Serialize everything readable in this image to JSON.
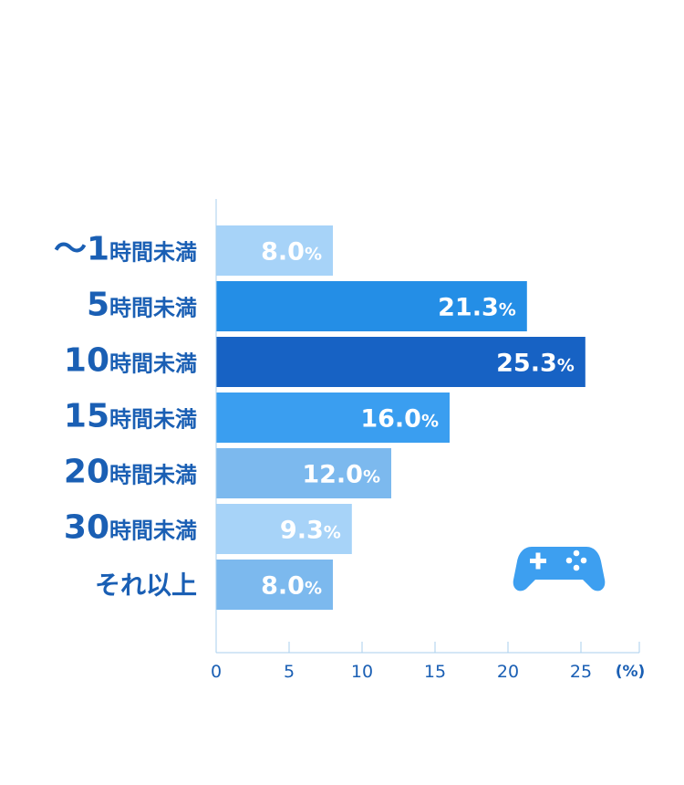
{
  "chart_data": {
    "type": "bar",
    "orientation": "horizontal",
    "categories": [
      "～1時間未満",
      "5時間未満",
      "10時間未満",
      "15時間未満",
      "20時間未満",
      "30時間未満",
      "それ以上"
    ],
    "values": [
      8.0,
      21.3,
      25.3,
      16.0,
      12.0,
      9.3,
      8.0
    ],
    "value_labels": [
      "8.0",
      "21.3",
      "25.3",
      "16.0",
      "12.0",
      "9.3",
      "8.0"
    ],
    "value_suffix": "%",
    "bar_colors": [
      "#a7d3f8",
      "#248ee6",
      "#1762c4",
      "#3a9ef0",
      "#7cb9ee",
      "#a7d3f8",
      "#7cb9ee"
    ],
    "xlim": [
      0,
      29
    ],
    "xticks": [
      0,
      5,
      10,
      15,
      20,
      25
    ],
    "x_unit_label": "(%)",
    "grid": false,
    "axis_color": "#a8cfee",
    "label_color": "#1a5fb4"
  },
  "decoration": {
    "icon": "game-controller-icon",
    "icon_color": "#3d9ff0"
  }
}
